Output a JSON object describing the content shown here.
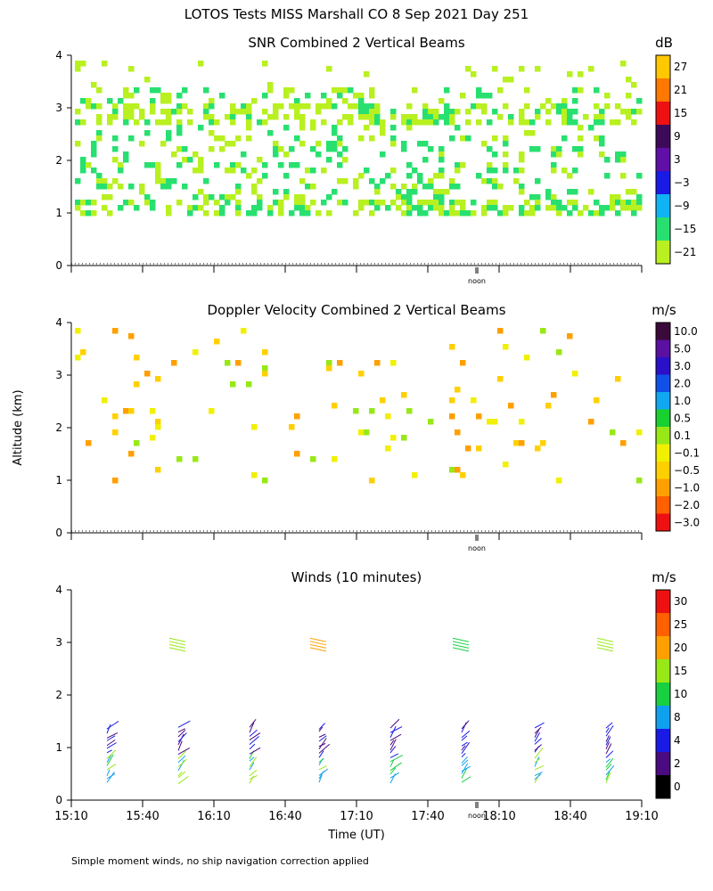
{
  "page": {
    "title": "LOTOS Tests MISS Marshall CO   8 Sep 2021 Day 251",
    "footnote": "Simple moment winds, no ship navigation correction applied",
    "shared_ylabel": "Altitude (km)",
    "shared_xlabel": "Time (UT)",
    "noon_label": "noon"
  },
  "chart_data": [
    {
      "type": "heatmap",
      "title": "SNR Combined 2 Vertical Beams",
      "xlabel": "",
      "ylabel": "Altitude (km)",
      "ylim": [
        0,
        4
      ],
      "yticks": [
        "0",
        "1",
        "2",
        "3",
        "4"
      ],
      "xticks": [],
      "noon_marker": "noon",
      "colorbar": {
        "unit": "dB",
        "labels": [
          "27",
          "21",
          "15",
          "9",
          "3",
          "−3",
          "−9",
          "−15",
          "−21"
        ],
        "colors": [
          "#ffc800",
          "#ff7800",
          "#ee1111",
          "#3d0a5a",
          "#6010a8",
          "#1a1ae6",
          "#10b4f5",
          "#28e070",
          "#b8f020"
        ]
      }
    },
    {
      "type": "heatmap",
      "title": "Doppler Velocity Combined 2 Vertical Beams",
      "xlabel": "",
      "ylabel": "Altitude (km)",
      "ylim": [
        0,
        4
      ],
      "yticks": [
        "0",
        "1",
        "2",
        "3",
        "4"
      ],
      "xticks": [],
      "noon_marker": "noon",
      "colorbar": {
        "unit": "m/s",
        "labels": [
          "10.0",
          "5.0",
          "3.0",
          "2.0",
          "1.0",
          "0.5",
          "0.1",
          "−0.1",
          "−0.5",
          "−1.0",
          "−2.0",
          "−3.0"
        ],
        "colors": [
          "#3a0a3a",
          "#5a10a0",
          "#2a10c8",
          "#1050e8",
          "#10a8f0",
          "#18d030",
          "#98e818",
          "#f0f000",
          "#ffd000",
          "#ffa000",
          "#ff6000",
          "#ee1111"
        ]
      }
    },
    {
      "type": "scatter",
      "title": "Winds (10 minutes)",
      "xlabel": "Time (UT)",
      "ylabel": "Altitude (km)",
      "ylim": [
        0,
        4
      ],
      "yticks": [
        "0",
        "1",
        "2",
        "3",
        "4"
      ],
      "xticks": [
        "15:10",
        "15:40",
        "16:10",
        "16:40",
        "17:10",
        "17:40",
        "18:10",
        "18:40",
        "19:10"
      ],
      "noon_marker": "noon",
      "colorbar": {
        "unit": "m/s",
        "labels": [
          "30",
          "25",
          "20",
          "15",
          "10",
          "8",
          "4",
          "2",
          "0"
        ],
        "colors": [
          "#ee1111",
          "#ff6000",
          "#ffa000",
          "#98e818",
          "#18d040",
          "#10a0f0",
          "#1a1ae6",
          "#4a0a80",
          "#000000"
        ]
      }
    }
  ]
}
